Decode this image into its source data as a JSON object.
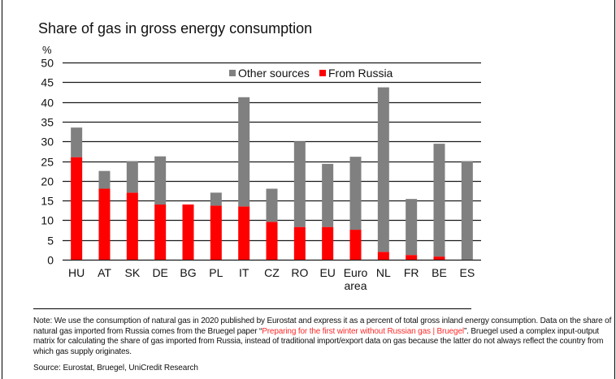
{
  "chart_data": {
    "type": "bar",
    "stacked": true,
    "title": "Share of gas in gross energy consumption",
    "ylabel": "%",
    "xlabel": "",
    "ylim": [
      0,
      50
    ],
    "yticks": [
      0,
      5,
      10,
      15,
      20,
      25,
      30,
      35,
      40,
      45,
      50
    ],
    "grid": true,
    "legend_position": "top-right",
    "categories": [
      "HU",
      "AT",
      "SK",
      "DE",
      "BG",
      "PL",
      "IT",
      "CZ",
      "RO",
      "EU",
      "Euro area",
      "NL",
      "FR",
      "BE",
      "ES"
    ],
    "series": [
      {
        "name": "From Russia",
        "color": "#ff0000",
        "values": [
          26.0,
          18.0,
          17.0,
          14.0,
          14.0,
          13.7,
          13.5,
          9.6,
          8.3,
          8.3,
          7.6,
          2.0,
          1.2,
          0.8,
          0.0
        ]
      },
      {
        "name": "Other sources",
        "color": "#808080",
        "values": [
          7.5,
          4.5,
          8.0,
          12.2,
          0.0,
          3.3,
          27.7,
          8.4,
          21.7,
          16.0,
          18.5,
          41.7,
          14.2,
          28.6,
          25.0
        ]
      }
    ],
    "legend": [
      "Other sources",
      "From Russia"
    ]
  },
  "notes": {
    "note_prefix": "Note: We use the consumption of natural gas in 2020 published by Eurostat and express it as a percent of total gross inland energy consumption. Data on the share of natural gas imported from Russia comes from the Bruegel paper “",
    "note_link": "Preparing for the first winter without Russian gas | Bruegel",
    "note_suffix": "”. Bruegel used a complex input-output matrix for calculating the share of gas imported from Russia, instead of traditional import/export data on gas because the latter do not always reflect the country from which gas supply originates.",
    "source": "Source: Eurostat, Bruegel, UniCredit Research"
  }
}
